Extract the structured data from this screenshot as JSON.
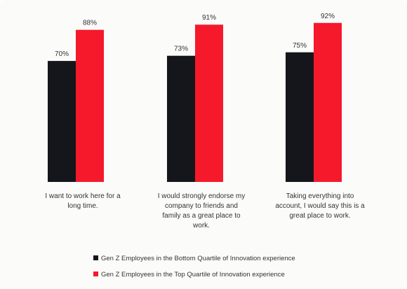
{
  "chart_data": {
    "type": "bar",
    "categories": [
      "I want to work here for a long time.",
      "I would strongly endorse my company to friends and family as a great place to work.",
      "Taking everything into account, I would say this is a great place to work."
    ],
    "category_lines": [
      [
        "I want to work here for a",
        "long time."
      ],
      [
        "I would strongly endorse my",
        "company to friends and",
        "family as a great place to",
        "work."
      ],
      [
        "Taking everything into",
        "account, I would say this is a",
        "great place to work."
      ]
    ],
    "series": [
      {
        "name": "Gen Z Employees in the Bottom Quartile of Innovation experience",
        "values": [
          70,
          73,
          75
        ],
        "labels": [
          "70%",
          "73%",
          "75%"
        ],
        "color": "#15161c"
      },
      {
        "name": "Gen Z Employees in the Top Quartile of Innovation experience",
        "values": [
          88,
          91,
          92
        ],
        "labels": [
          "88%",
          "91%",
          "92%"
        ],
        "color": "#f5192b"
      }
    ],
    "ylim": [
      0,
      100
    ],
    "grid": false,
    "legend_position": "bottom-left"
  }
}
